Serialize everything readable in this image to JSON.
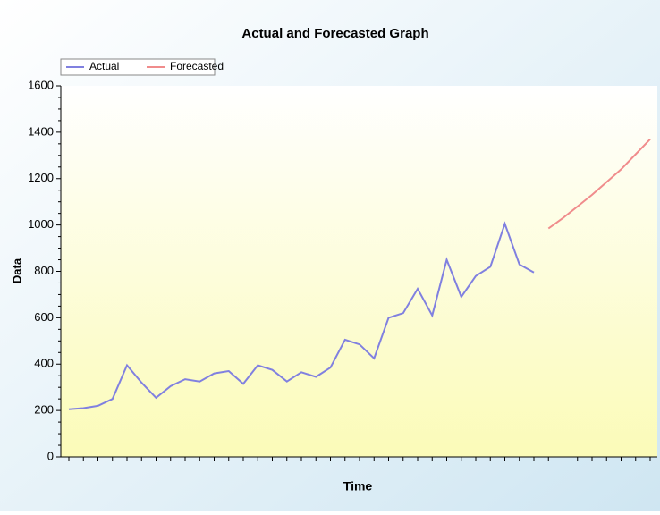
{
  "chart_data": {
    "type": "line",
    "title": "Actual and Forecasted Graph",
    "x_label": "Time",
    "y_label": "Data",
    "categories": [
      null,
      null,
      null,
      null,
      null,
      null,
      null,
      null,
      null,
      null,
      null,
      null,
      null,
      null,
      null,
      null,
      null,
      null,
      null,
      null,
      null,
      null,
      null,
      null,
      null,
      null,
      null,
      null,
      null,
      null,
      null,
      null,
      null,
      null,
      null,
      null,
      null,
      null,
      null,
      null,
      null
    ],
    "series": [
      {
        "name": "Actual",
        "color": "#8080e0",
        "values": [
          205,
          210,
          220,
          250,
          395,
          320,
          255,
          305,
          335,
          325,
          360,
          370,
          315,
          395,
          375,
          325,
          365,
          345,
          385,
          505,
          485,
          425,
          600,
          620,
          725,
          610,
          850,
          690,
          780,
          820,
          1005,
          830,
          795,
          null,
          null,
          null,
          null,
          null,
          null,
          null,
          null
        ]
      },
      {
        "name": "Forecasted",
        "color": "#f08c8c",
        "values": [
          null,
          null,
          null,
          null,
          null,
          null,
          null,
          null,
          null,
          null,
          null,
          null,
          null,
          null,
          null,
          null,
          null,
          null,
          null,
          null,
          null,
          null,
          null,
          null,
          null,
          null,
          null,
          null,
          null,
          null,
          null,
          null,
          null,
          985,
          1030,
          1080,
          1130,
          1185,
          1240,
          1305,
          1370
        ]
      }
    ],
    "ylim": [
      0,
      1600
    ],
    "yticks": [
      0,
      200,
      400,
      600,
      800,
      1000,
      1200,
      1400,
      1600
    ],
    "legend": "top-left"
  }
}
